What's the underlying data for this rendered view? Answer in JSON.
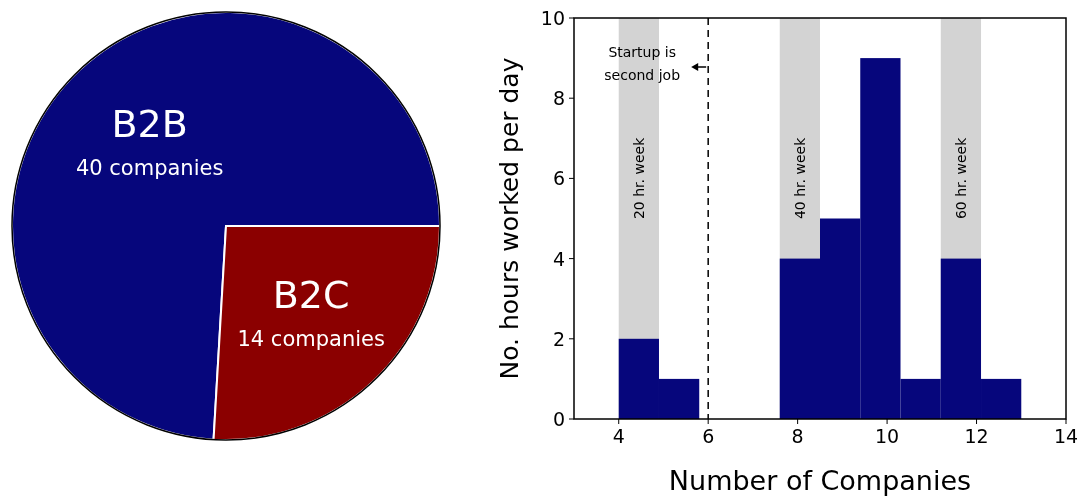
{
  "chart_data": [
    {
      "type": "pie",
      "categories": [
        "B2B",
        "B2C"
      ],
      "values": [
        40,
        14
      ],
      "colors": [
        "#06067c",
        "#8b0000"
      ],
      "value_labels": [
        "40 companies",
        "14 companies"
      ]
    },
    {
      "type": "histogram",
      "xlabel": "Number of Companies",
      "ylabel": "No. hours worked per day",
      "bins": [
        4,
        4.9,
        5.8,
        6.7,
        7.6,
        8.5,
        9.4,
        10.3,
        11.2,
        12.1,
        13
      ],
      "values": [
        2,
        1,
        0,
        0,
        4,
        5,
        9,
        1,
        4,
        1
      ],
      "color": "#06067c",
      "xlim": [
        3,
        14
      ],
      "xticks": [
        4,
        6,
        8,
        10,
        12,
        14
      ],
      "ylim": [
        0,
        10
      ],
      "yticks": [
        0,
        2,
        4,
        6,
        8,
        10
      ],
      "bands": [
        {
          "axis": "x",
          "from": 4,
          "to": 4.9,
          "label": "20 hr. week",
          "color": "#d3d3d3"
        },
        {
          "axis": "x",
          "from": 7.6,
          "to": 8.5,
          "label": "40 hr. week",
          "color": "#d3d3d3"
        },
        {
          "axis": "x",
          "from": 11.2,
          "to": 12.1,
          "label": "60 hr. week",
          "color": "#d3d3d3"
        }
      ],
      "ref_lines": [
        {
          "axis": "x",
          "value": 6,
          "label": "Startup is second job",
          "color": "#000000",
          "line_style": "dashed"
        }
      ]
    }
  ]
}
